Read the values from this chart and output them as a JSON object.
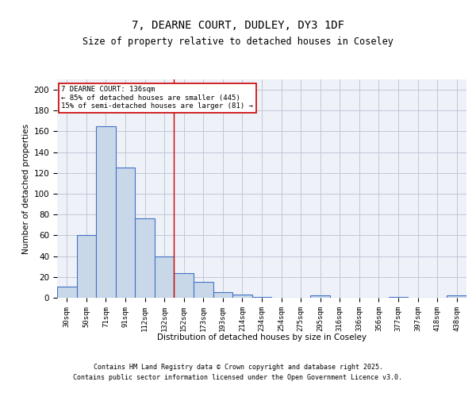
{
  "title": "7, DEARNE COURT, DUDLEY, DY3 1DF",
  "subtitle": "Size of property relative to detached houses in Coseley",
  "xlabel": "Distribution of detached houses by size in Coseley",
  "ylabel": "Number of detached properties",
  "bar_labels": [
    "30sqm",
    "50sqm",
    "71sqm",
    "91sqm",
    "112sqm",
    "132sqm",
    "152sqm",
    "173sqm",
    "193sqm",
    "214sqm",
    "234sqm",
    "254sqm",
    "275sqm",
    "295sqm",
    "316sqm",
    "336sqm",
    "356sqm",
    "377sqm",
    "397sqm",
    "418sqm",
    "438sqm"
  ],
  "bar_values": [
    11,
    60,
    165,
    125,
    76,
    40,
    24,
    15,
    5,
    3,
    1,
    0,
    0,
    2,
    0,
    0,
    0,
    1,
    0,
    0,
    2
  ],
  "bar_color": "#c8d8e8",
  "bar_edge_color": "#4472c4",
  "grid_color": "#c0c8d8",
  "background_color": "#eef2f8",
  "vline_x": 5.5,
  "vline_color": "#cc0000",
  "annotation_text": "7 DEARNE COURT: 136sqm\n← 85% of detached houses are smaller (445)\n15% of semi-detached houses are larger (81) →",
  "annotation_box_color": "#ffffff",
  "annotation_box_edge": "#cc0000",
  "ylim": [
    0,
    210
  ],
  "yticks": [
    0,
    20,
    40,
    60,
    80,
    100,
    120,
    140,
    160,
    180,
    200
  ],
  "footer_line1": "Contains HM Land Registry data © Crown copyright and database right 2025.",
  "footer_line2": "Contains public sector information licensed under the Open Government Licence v3.0."
}
